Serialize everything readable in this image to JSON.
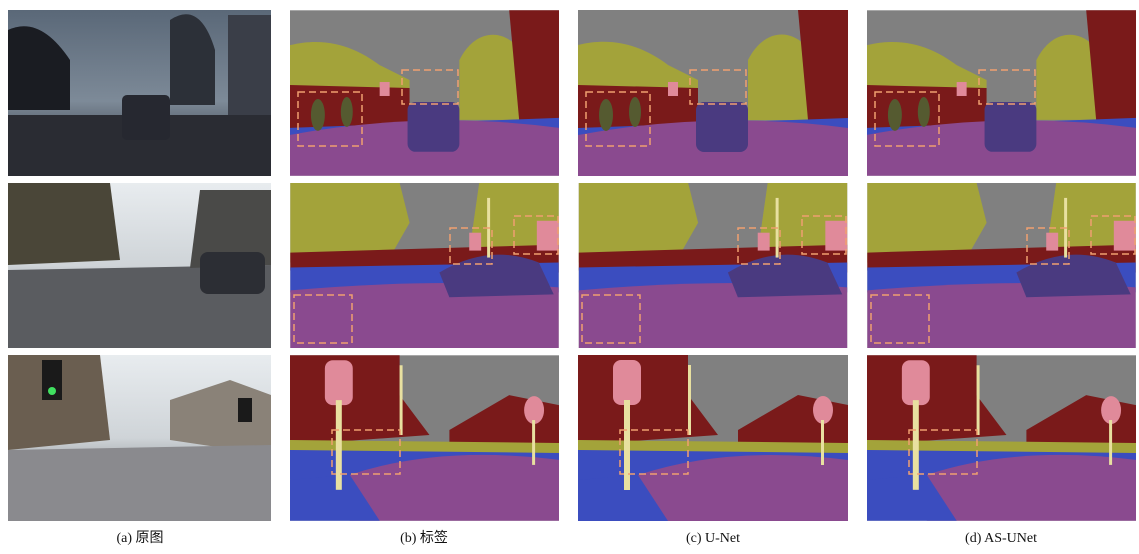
{
  "figure": {
    "captions": [
      "(a) 原图",
      "(b) 标签",
      "(c) U-Net",
      "(d) AS-UNet"
    ]
  }
}
